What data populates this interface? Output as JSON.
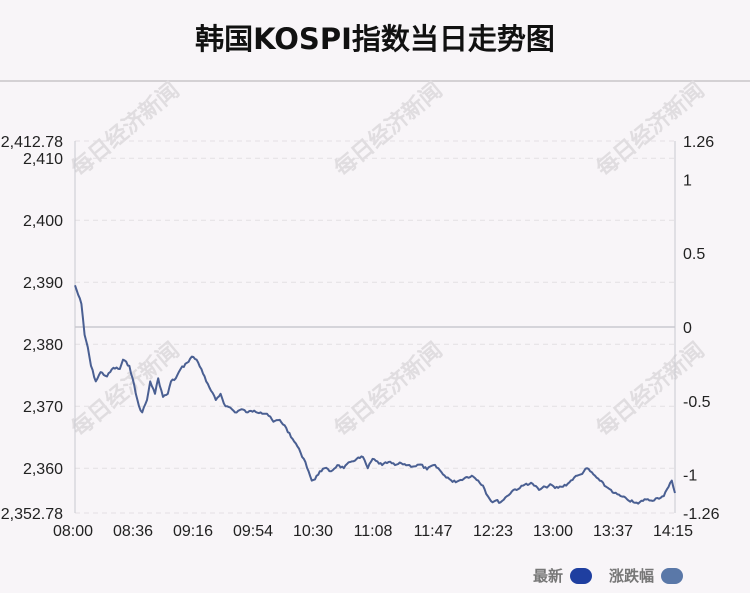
{
  "header": {
    "title": "韩国KOSPI指数当日走势图"
  },
  "watermark": {
    "text": "每日经济新闻"
  },
  "legend": [
    {
      "label": "最新",
      "color": "#1f3fa0"
    },
    {
      "label": "涨跌幅",
      "color": "#5a78a8"
    }
  ],
  "colors": {
    "line": "#4a5f92",
    "zero_line": "#c9c9cf",
    "grid": "#e3e0e3",
    "axis": "#c9c9cf"
  },
  "chart_data": {
    "type": "line",
    "title": "韩国KOSPI指数当日走势图",
    "x_ticks": [
      "08:00",
      "08:36",
      "09:16",
      "09:54",
      "10:30",
      "11:08",
      "11:47",
      "12:23",
      "13:00",
      "13:37",
      "14:15"
    ],
    "y_left": {
      "min": 2352.78,
      "max": 2412.78,
      "ticks": [
        "2,412.78",
        "2,410",
        "2,400",
        "2,390",
        "2,380",
        "2,370",
        "2,360",
        "2,352.78"
      ]
    },
    "y_right": {
      "min": -1.26,
      "max": 1.26,
      "ticks": [
        "1.26",
        "1",
        "0.5",
        "0",
        "-0.5",
        "-1",
        "-1.26"
      ]
    },
    "reference_value": 2382.78,
    "grid": true,
    "series": [
      {
        "name": "最新",
        "points": [
          [
            "08:00",
            2389.5
          ],
          [
            "08:04",
            2386.5
          ],
          [
            "08:06",
            2381.5
          ],
          [
            "08:08",
            2379.5
          ],
          [
            "08:10",
            2376.5
          ],
          [
            "08:13",
            2374.0
          ],
          [
            "08:16",
            2375.5
          ],
          [
            "08:20",
            2374.8
          ],
          [
            "08:24",
            2376.2
          ],
          [
            "08:28",
            2376.0
          ],
          [
            "08:30",
            2377.5
          ],
          [
            "08:34",
            2376.5
          ],
          [
            "08:36",
            2374.5
          ],
          [
            "08:38",
            2372.0
          ],
          [
            "08:40",
            2370.0
          ],
          [
            "08:42",
            2369.0
          ],
          [
            "08:45",
            2371.0
          ],
          [
            "08:47",
            2374.0
          ],
          [
            "08:50",
            2372.0
          ],
          [
            "08:52",
            2374.5
          ],
          [
            "08:55",
            2371.5
          ],
          [
            "08:58",
            2372.0
          ],
          [
            "09:00",
            2374.0
          ],
          [
            "09:03",
            2374.5
          ],
          [
            "09:06",
            2376.0
          ],
          [
            "09:10",
            2377.0
          ],
          [
            "09:13",
            2378.0
          ],
          [
            "09:16",
            2377.5
          ],
          [
            "09:19",
            2376.0
          ],
          [
            "09:22",
            2374.0
          ],
          [
            "09:25",
            2372.5
          ],
          [
            "09:28",
            2371.0
          ],
          [
            "09:31",
            2372.0
          ],
          [
            "09:34",
            2370.0
          ],
          [
            "09:37",
            2369.8
          ],
          [
            "09:40",
            2369.0
          ],
          [
            "09:44",
            2369.5
          ],
          [
            "09:48",
            2369.0
          ],
          [
            "09:52",
            2369.3
          ],
          [
            "09:56",
            2369.0
          ],
          [
            "10:00",
            2368.8
          ],
          [
            "10:04",
            2367.5
          ],
          [
            "10:08",
            2367.8
          ],
          [
            "10:12",
            2366.5
          ],
          [
            "10:15",
            2365.0
          ],
          [
            "10:18",
            2364.0
          ],
          [
            "10:21",
            2362.5
          ],
          [
            "10:24",
            2361.0
          ],
          [
            "10:26",
            2359.5
          ],
          [
            "10:28",
            2358.0
          ],
          [
            "10:30",
            2358.2
          ],
          [
            "10:33",
            2359.5
          ],
          [
            "10:36",
            2360.0
          ],
          [
            "10:40",
            2359.5
          ],
          [
            "10:44",
            2360.5
          ],
          [
            "10:48",
            2360.0
          ],
          [
            "10:52",
            2361.0
          ],
          [
            "10:56",
            2361.5
          ],
          [
            "11:00",
            2361.8
          ],
          [
            "11:03",
            2360.0
          ],
          [
            "11:06",
            2361.5
          ],
          [
            "11:08",
            2361.2
          ],
          [
            "11:12",
            2360.5
          ],
          [
            "11:16",
            2361.0
          ],
          [
            "11:20",
            2360.5
          ],
          [
            "11:24",
            2360.8
          ],
          [
            "11:28",
            2360.5
          ],
          [
            "11:32",
            2360.3
          ],
          [
            "11:36",
            2360.6
          ],
          [
            "11:40",
            2359.8
          ],
          [
            "11:44",
            2360.5
          ],
          [
            "11:47",
            2360.0
          ],
          [
            "11:50",
            2359.0
          ],
          [
            "11:53",
            2358.5
          ],
          [
            "11:56",
            2357.8
          ],
          [
            "12:00",
            2358.0
          ],
          [
            "12:04",
            2358.5
          ],
          [
            "12:08",
            2358.8
          ],
          [
            "12:12",
            2358.0
          ],
          [
            "12:15",
            2357.2
          ],
          [
            "12:18",
            2355.5
          ],
          [
            "12:21",
            2354.5
          ],
          [
            "12:23",
            2354.8
          ],
          [
            "12:26",
            2354.5
          ],
          [
            "12:30",
            2355.5
          ],
          [
            "12:34",
            2356.5
          ],
          [
            "12:38",
            2356.8
          ],
          [
            "12:42",
            2357.5
          ],
          [
            "12:46",
            2357.5
          ],
          [
            "12:50",
            2356.5
          ],
          [
            "12:54",
            2357.0
          ],
          [
            "12:58",
            2357.3
          ],
          [
            "13:00",
            2356.8
          ],
          [
            "13:04",
            2357.0
          ],
          [
            "13:08",
            2357.5
          ],
          [
            "13:12",
            2358.5
          ],
          [
            "13:16",
            2359.0
          ],
          [
            "13:20",
            2360.0
          ],
          [
            "13:24",
            2359.0
          ],
          [
            "13:28",
            2358.0
          ],
          [
            "13:32",
            2357.0
          ],
          [
            "13:35",
            2356.5
          ],
          [
            "13:37",
            2356.0
          ],
          [
            "13:41",
            2355.5
          ],
          [
            "13:45",
            2355.0
          ],
          [
            "13:49",
            2354.5
          ],
          [
            "13:52",
            2354.3
          ],
          [
            "13:56",
            2355.0
          ],
          [
            "14:00",
            2354.8
          ],
          [
            "14:04",
            2355.2
          ],
          [
            "14:08",
            2355.5
          ],
          [
            "14:11",
            2357.0
          ],
          [
            "14:13",
            2358.0
          ],
          [
            "14:15",
            2356.0
          ]
        ]
      }
    ]
  }
}
